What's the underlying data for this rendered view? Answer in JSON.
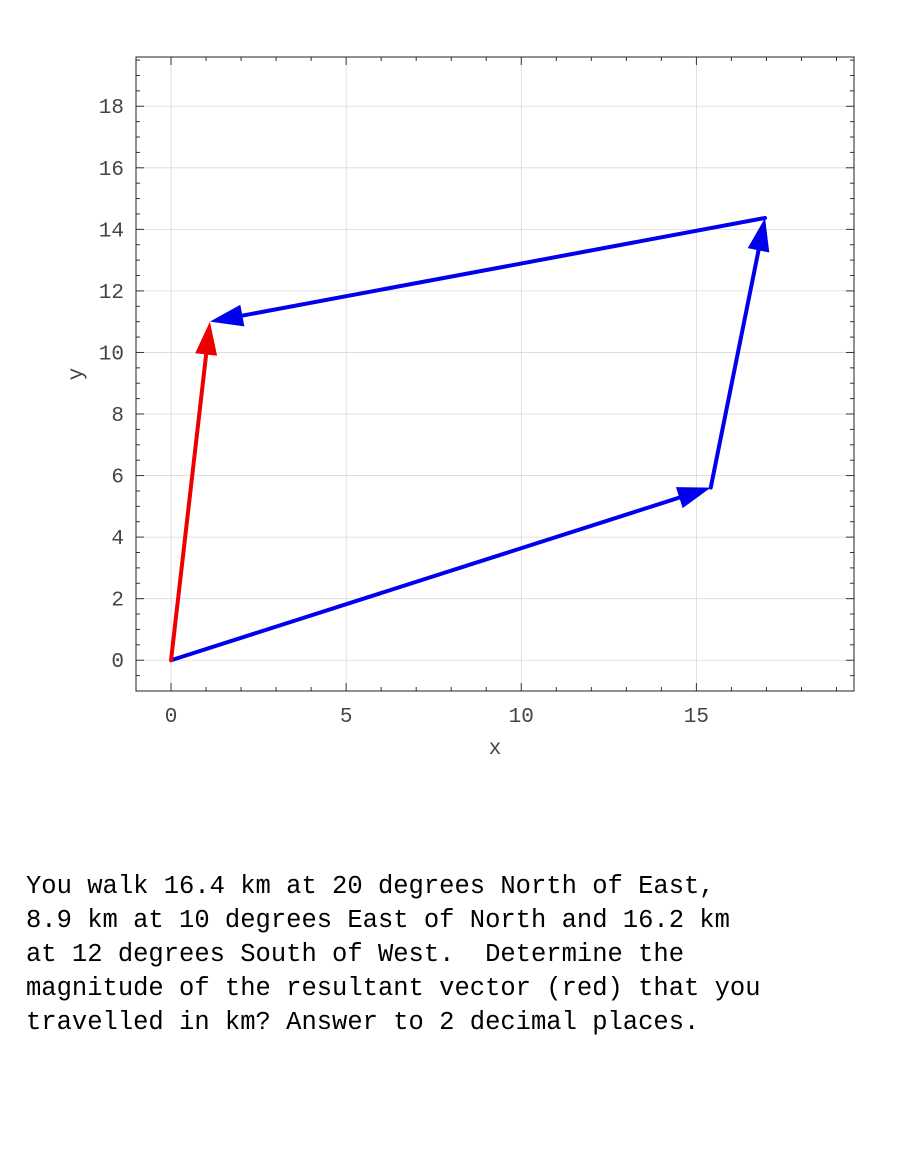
{
  "chart_data": {
    "type": "line",
    "subtype": "vector-diagram",
    "title": "",
    "xlabel": "x",
    "ylabel": "y",
    "xlim": [
      -1,
      19.5
    ],
    "ylim": [
      -1,
      19.6
    ],
    "xticks": [
      0,
      5,
      10,
      15
    ],
    "yticks": [
      0,
      2,
      4,
      6,
      8,
      10,
      12,
      14,
      16,
      18
    ],
    "grid": true,
    "vectors": [
      {
        "from": [
          0,
          0
        ],
        "to": [
          15.41,
          5.61
        ],
        "color": "#0000ee"
      },
      {
        "from": [
          15.41,
          5.61
        ],
        "to": [
          16.96,
          14.37
        ],
        "color": "#0000ee"
      },
      {
        "from": [
          16.96,
          14.37
        ],
        "to": [
          1.11,
          11.0
        ],
        "color": "#0000ee"
      },
      {
        "from": [
          0,
          0
        ],
        "to": [
          1.11,
          11.0
        ],
        "color": "#ee0000"
      }
    ]
  },
  "question": {
    "lines": [
      "You walk 16.4 km at 20 degrees North of East,",
      "8.9 km at 10 degrees East of North and 16.2 km",
      "at 12 degrees South of West.  Determine the",
      "magnitude of the resultant vector (red) that you",
      "travelled in km? Answer to 2 decimal places."
    ]
  }
}
